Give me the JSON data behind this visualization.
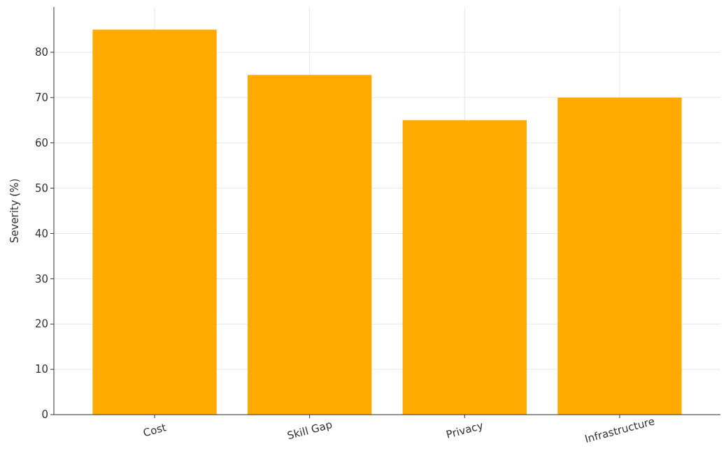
{
  "chart_data": {
    "type": "bar",
    "ylabel": "Severity (%)",
    "categories": [
      "Cost",
      "Skill Gap",
      "Privacy",
      "Infrastructure"
    ],
    "values": [
      85,
      75,
      65,
      70
    ],
    "color": "#ffaa00",
    "ylim": [
      0,
      90
    ],
    "yticks": [
      0,
      10,
      20,
      30,
      40,
      50,
      60,
      70,
      80
    ],
    "grid": true
  }
}
